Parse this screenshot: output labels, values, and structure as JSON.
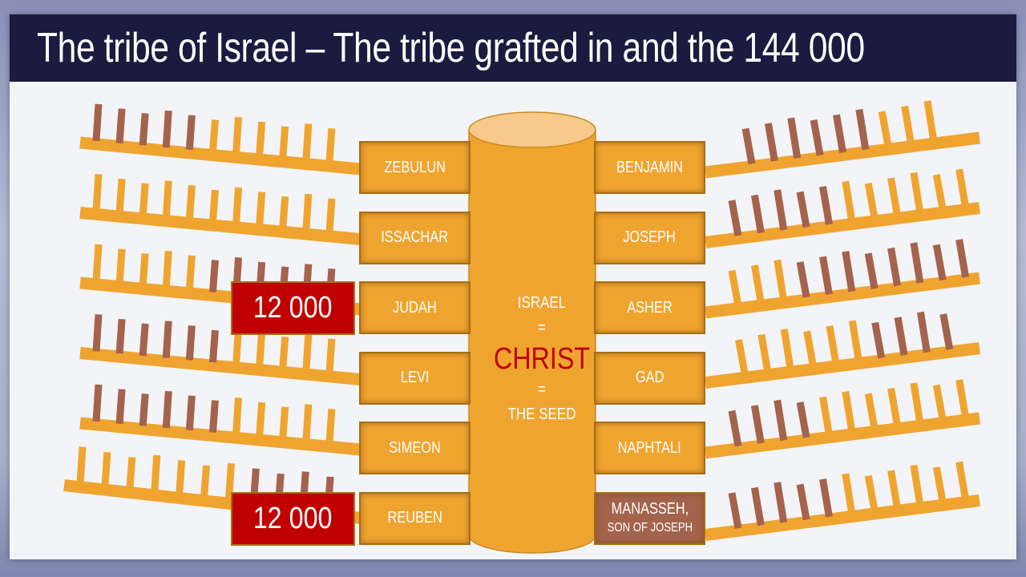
{
  "title": "The tribe of Israel – The tribe grafted in and the 144 000",
  "colors": {
    "natural": "#f0a430",
    "grafted": "#a4634c",
    "count": "#c00000",
    "title_bar": "#1b1b3f"
  },
  "center": {
    "line1": "ISRAEL",
    "eq1": "=",
    "highlight": "CHRIST",
    "eq2": "=",
    "line3": "THE SEED"
  },
  "left_tribes": [
    "ZEBULUN",
    "ISSACHAR",
    "JUDAH",
    "LEVI",
    "SIMEON",
    "REUBEN"
  ],
  "right_tribes": [
    {
      "name": "BENJAMIN"
    },
    {
      "name": "JOSEPH"
    },
    {
      "name": "ASHER"
    },
    {
      "name": "GAD"
    },
    {
      "name": "NAPHTALI"
    },
    {
      "name": "MANASSEH,",
      "sub": "SON OF JOSEPH",
      "grafted": true
    }
  ],
  "counts": [
    {
      "tribe": "JUDAH",
      "label": "12 000"
    },
    {
      "tribe": "REUBEN",
      "label": "12 000"
    }
  ],
  "branches": {
    "legend": "B = grafted (brown) branch, O = natural (orange) branch",
    "left": [
      "BBBBBOOOOOO",
      "OOOOOOOOOOO",
      "OOOOOBBBBBB",
      "BBBBBBOOOOO",
      "BBBBBBOOOOO",
      "OOOOOOOBBBB"
    ],
    "right": [
      "BBBBBBOOO",
      "BBBBBOOOOOO",
      "OOOBBBBBBBB",
      "OOOOOOBBBB",
      "BBBBOOOOOOO",
      "BBBBBOOOOOO"
    ]
  }
}
